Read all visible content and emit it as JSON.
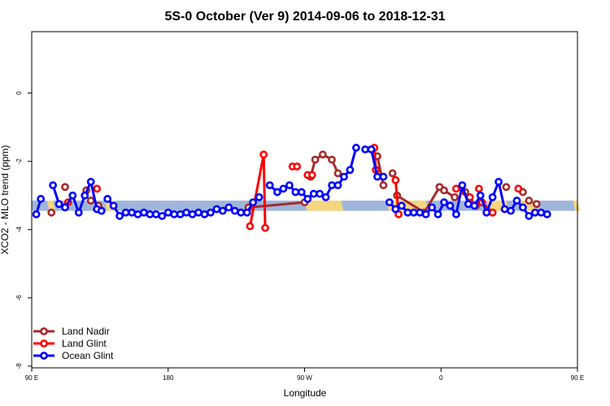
{
  "chart_data": {
    "type": "line",
    "title": "5S-0 October (Ver 9)   2014-09-06 to 2018-12-31",
    "xlabel": "Longitude",
    "ylabel": "XCO2 - MLO trend (ppm)",
    "xlim": [
      0,
      360
    ],
    "ylim": [
      -8.05,
      1.8
    ],
    "x_ticks": [
      {
        "value": 0,
        "label": "90 E"
      },
      {
        "value": 90,
        "label": "180"
      },
      {
        "value": 180,
        "label": "90 W"
      },
      {
        "value": 270,
        "label": "0"
      },
      {
        "value": 360,
        "label": "90 E"
      }
    ],
    "y_ticks": [
      {
        "value": 0,
        "label": "0"
      },
      {
        "value": -2,
        "label": "-2"
      },
      {
        "value": -4,
        "label": "-4"
      },
      {
        "value": -6,
        "label": "-6"
      },
      {
        "value": -8,
        "label": "-8"
      }
    ],
    "background_band": {
      "y_center": -3.3,
      "half_height": 0.15,
      "colors": {
        "ocean": "#9fb6db",
        "land": "#f5d67e"
      },
      "land_segments": [
        [
          10,
          14
        ],
        [
          48,
          55
        ],
        [
          180,
          204
        ],
        [
          234,
          260
        ],
        [
          300,
          313
        ],
        [
          321,
          332
        ],
        [
          357,
          360
        ]
      ]
    },
    "legend": {
      "position": "bottom-left"
    },
    "series": [
      {
        "name": "Land Nadir",
        "color": "#a52a2a",
        "points": [
          [
            13,
            -3.5
          ],
          [
            22,
            -2.75
          ],
          [
            36,
            -2.85
          ],
          [
            39,
            -3.15
          ],
          [
            44,
            -3.3
          ],
          [
            143,
            -3.35
          ],
          [
            180,
            -3.2
          ],
          [
            184,
            -2.45
          ],
          [
            187,
            -1.95
          ],
          [
            192,
            -1.8
          ],
          [
            198,
            -1.95
          ],
          [
            202,
            -2.35
          ],
          [
            228,
            -1.85
          ],
          [
            232,
            -2.7
          ],
          [
            238,
            -2.35
          ],
          [
            241,
            -3.0
          ],
          [
            259,
            -3.5
          ],
          [
            269,
            -2.75
          ],
          [
            272,
            -2.85
          ],
          [
            279,
            -3.05
          ],
          [
            286,
            -2.9
          ],
          [
            289,
            -3.2
          ],
          [
            293,
            -3.3
          ],
          [
            304,
            -3.5
          ],
          [
            313,
            -2.75
          ],
          [
            324,
            -2.9
          ],
          [
            328,
            -3.15
          ],
          [
            333,
            -3.25
          ]
        ],
        "segments": [
          [
            5,
            6
          ],
          [
            7,
            8,
            9,
            10,
            11
          ],
          [
            12,
            13
          ],
          [
            15,
            16,
            17,
            18,
            19
          ]
        ]
      },
      {
        "name": "Land Glint",
        "color": "#ff0000",
        "points": [
          [
            24,
            -3.2
          ],
          [
            43,
            -2.8
          ],
          [
            144,
            -3.9
          ],
          [
            153,
            -1.8
          ],
          [
            154,
            -3.95
          ],
          [
            172,
            -2.15
          ],
          [
            175,
            -2.15
          ],
          [
            182,
            -2.4
          ],
          [
            185,
            -2.4
          ],
          [
            226,
            -1.6
          ],
          [
            227,
            -2.25
          ],
          [
            240,
            -2.55
          ],
          [
            242,
            -3.55
          ],
          [
            280,
            -2.8
          ],
          [
            289,
            -3.05
          ],
          [
            295,
            -2.8
          ],
          [
            297,
            -3.2
          ],
          [
            304,
            -3.5
          ],
          [
            321,
            -2.8
          ]
        ],
        "segments": [
          [
            2,
            3,
            4
          ],
          [
            9,
            10
          ],
          [
            11,
            12
          ],
          [
            15,
            16,
            17
          ]
        ]
      },
      {
        "name": "Ocean Glint",
        "color": "#0000ff",
        "points": [
          [
            3,
            -3.55
          ],
          [
            6,
            -3.1
          ],
          [
            14,
            -2.7
          ],
          [
            18,
            -3.25
          ],
          [
            22,
            -3.35
          ],
          [
            27,
            -3.0
          ],
          [
            31,
            -3.5
          ],
          [
            35,
            -3.0
          ],
          [
            39,
            -2.6
          ],
          [
            43,
            -3.4
          ],
          [
            46,
            -3.45
          ],
          [
            50,
            -3.1
          ],
          [
            54,
            -3.3
          ],
          [
            58,
            -3.6
          ],
          [
            62,
            -3.5
          ],
          [
            66,
            -3.5
          ],
          [
            70,
            -3.55
          ],
          [
            74,
            -3.5
          ],
          [
            78,
            -3.55
          ],
          [
            82,
            -3.55
          ],
          [
            86,
            -3.6
          ],
          [
            90,
            -3.5
          ],
          [
            94,
            -3.55
          ],
          [
            98,
            -3.55
          ],
          [
            102,
            -3.5
          ],
          [
            106,
            -3.55
          ],
          [
            110,
            -3.5
          ],
          [
            114,
            -3.55
          ],
          [
            118,
            -3.5
          ],
          [
            122,
            -3.4
          ],
          [
            126,
            -3.45
          ],
          [
            130,
            -3.35
          ],
          [
            134,
            -3.45
          ],
          [
            138,
            -3.5
          ],
          [
            142,
            -3.5
          ],
          [
            146,
            -3.2
          ],
          [
            150,
            -3.05
          ],
          [
            157,
            -2.7
          ],
          [
            162,
            -2.9
          ],
          [
            166,
            -2.8
          ],
          [
            170,
            -2.7
          ],
          [
            174,
            -2.9
          ],
          [
            178,
            -2.9
          ],
          [
            182,
            -3.1
          ],
          [
            186,
            -2.95
          ],
          [
            190,
            -2.95
          ],
          [
            194,
            -3.05
          ],
          [
            198,
            -2.7
          ],
          [
            202,
            -2.7
          ],
          [
            206,
            -2.45
          ],
          [
            210,
            -2.25
          ],
          [
            214,
            -1.6
          ],
          [
            220,
            -1.65
          ],
          [
            224,
            -1.65
          ],
          [
            228,
            -2.45
          ],
          [
            232,
            -2.45
          ],
          [
            236,
            -3.2
          ],
          [
            240,
            -3.4
          ],
          [
            244,
            -3.3
          ],
          [
            248,
            -3.5
          ],
          [
            252,
            -3.5
          ],
          [
            256,
            -3.5
          ],
          [
            260,
            -3.55
          ],
          [
            264,
            -3.35
          ],
          [
            268,
            -3.55
          ],
          [
            272,
            -3.2
          ],
          [
            276,
            -3.3
          ],
          [
            280,
            -3.55
          ],
          [
            284,
            -2.7
          ],
          [
            288,
            -3.25
          ],
          [
            292,
            -3.3
          ],
          [
            296,
            -3.0
          ],
          [
            300,
            -3.5
          ],
          [
            304,
            -3.05
          ],
          [
            308,
            -2.6
          ],
          [
            312,
            -3.4
          ],
          [
            316,
            -3.45
          ],
          [
            320,
            -3.15
          ],
          [
            324,
            -3.35
          ],
          [
            328,
            -3.6
          ],
          [
            332,
            -3.5
          ],
          [
            336,
            -3.5
          ],
          [
            340,
            -3.55
          ]
        ],
        "segments": [
          [
            0,
            1
          ],
          [
            2,
            3,
            4,
            5,
            6,
            7,
            8,
            9,
            10
          ],
          [
            11,
            12,
            13,
            14,
            15,
            16,
            17,
            18,
            19,
            20,
            21,
            22,
            23,
            24,
            25,
            26,
            27,
            28,
            29,
            30,
            31,
            32,
            33,
            34,
            35,
            36
          ],
          [
            37,
            38,
            39,
            40,
            41,
            42,
            43,
            44,
            45,
            46,
            47,
            48,
            49,
            50,
            51
          ],
          [
            52,
            53,
            54,
            55
          ],
          [
            56,
            57,
            58,
            59,
            60,
            61,
            62,
            63,
            64,
            65,
            66,
            67,
            68,
            69,
            70,
            71,
            72,
            73,
            74,
            75,
            76,
            77,
            78,
            79,
            80,
            81,
            82
          ]
        ]
      }
    ]
  }
}
